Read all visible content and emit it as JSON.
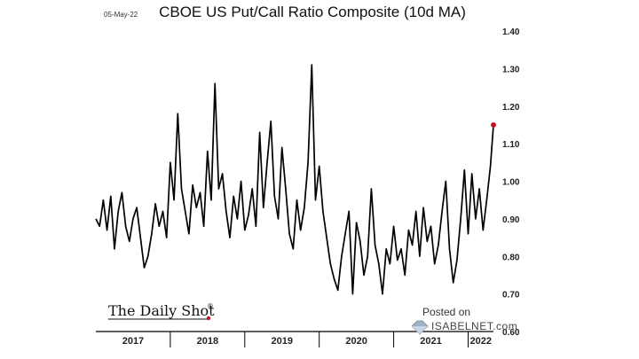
{
  "header": {
    "date_stamp": "05-May-22",
    "title": "CBOE US Put/Call Ratio Composite (10d MA)"
  },
  "branding": {
    "daily_shot": "The Daily Shot",
    "daily_shot_mark": "®",
    "posted_on": "Posted on",
    "isabelnet": "ISABELNET.com"
  },
  "colors": {
    "line": "#000000",
    "last_point": "#c8102e",
    "axis": "#000000"
  },
  "chart_data": {
    "type": "line",
    "title": "CBOE US Put/Call Ratio Composite (10d MA)",
    "xlabel": "",
    "ylabel": "",
    "y_axis_side": "right",
    "ylim": [
      0.6,
      1.4
    ],
    "yticks": [
      0.6,
      0.7,
      0.8,
      0.9,
      1.0,
      1.1,
      1.2,
      1.3,
      1.4
    ],
    "ytick_labels": [
      "0.60",
      "0.70",
      "0.80",
      "0.90",
      "1.00",
      "1.10",
      "1.20",
      "1.30",
      "1.40"
    ],
    "xlim": [
      2017.0,
      2022.34
    ],
    "x_categories": [
      "2017",
      "2018",
      "2019",
      "2020",
      "2021",
      "2022"
    ],
    "grid": false,
    "legend": "none",
    "series": [
      {
        "x": [
          2017.0,
          2017.05,
          2017.1,
          2017.15,
          2017.2,
          2017.25,
          2017.3,
          2017.35,
          2017.4,
          2017.45,
          2017.5,
          2017.55,
          2017.6,
          2017.65,
          2017.7,
          2017.75,
          2017.8,
          2017.85,
          2017.9,
          2017.95,
          2018.0,
          2018.05,
          2018.1,
          2018.15,
          2018.2,
          2018.25,
          2018.3,
          2018.35,
          2018.4,
          2018.45,
          2018.5,
          2018.55,
          2018.6,
          2018.65,
          2018.7,
          2018.75,
          2018.8,
          2018.85,
          2018.9,
          2018.95,
          2019.0,
          2019.05,
          2019.1,
          2019.15,
          2019.2,
          2019.25,
          2019.3,
          2019.35,
          2019.4,
          2019.45,
          2019.5,
          2019.55,
          2019.6,
          2019.65,
          2019.7,
          2019.75,
          2019.8,
          2019.85,
          2019.9,
          2019.95,
          2020.0,
          2020.05,
          2020.1,
          2020.15,
          2020.2,
          2020.25,
          2020.3,
          2020.35,
          2020.4,
          2020.45,
          2020.5,
          2020.55,
          2020.6,
          2020.65,
          2020.7,
          2020.75,
          2020.8,
          2020.85,
          2020.9,
          2020.95,
          2021.0,
          2021.05,
          2021.1,
          2021.15,
          2021.2,
          2021.25,
          2021.3,
          2021.35,
          2021.4,
          2021.45,
          2021.5,
          2021.55,
          2021.6,
          2021.65,
          2021.7,
          2021.75,
          2021.8,
          2021.85,
          2021.9,
          2021.95,
          2022.0,
          2022.05,
          2022.1,
          2022.15,
          2022.2,
          2022.25,
          2022.3,
          2022.34
        ],
        "values": [
          0.9,
          0.88,
          0.95,
          0.87,
          0.96,
          0.82,
          0.92,
          0.97,
          0.88,
          0.84,
          0.9,
          0.93,
          0.85,
          0.77,
          0.8,
          0.86,
          0.94,
          0.88,
          0.92,
          0.85,
          1.05,
          0.95,
          1.18,
          0.98,
          0.92,
          0.86,
          0.99,
          0.93,
          0.97,
          0.88,
          1.08,
          0.95,
          1.26,
          0.98,
          1.02,
          0.92,
          0.85,
          0.96,
          0.9,
          1.0,
          0.87,
          0.91,
          0.98,
          0.88,
          1.13,
          0.93,
          1.05,
          1.16,
          0.96,
          0.9,
          1.09,
          0.98,
          0.86,
          0.82,
          0.95,
          0.87,
          0.93,
          1.05,
          1.31,
          0.95,
          1.04,
          0.92,
          0.85,
          0.78,
          0.74,
          0.71,
          0.8,
          0.86,
          0.92,
          0.7,
          0.89,
          0.84,
          0.75,
          0.8,
          0.98,
          0.83,
          0.78,
          0.7,
          0.82,
          0.78,
          0.88,
          0.79,
          0.82,
          0.75,
          0.87,
          0.83,
          0.92,
          0.8,
          0.93,
          0.84,
          0.88,
          0.78,
          0.83,
          0.92,
          1.0,
          0.82,
          0.73,
          0.79,
          0.9,
          1.03,
          0.86,
          1.02,
          0.9,
          0.98,
          0.87,
          0.95,
          1.04,
          1.15
        ]
      }
    ]
  }
}
